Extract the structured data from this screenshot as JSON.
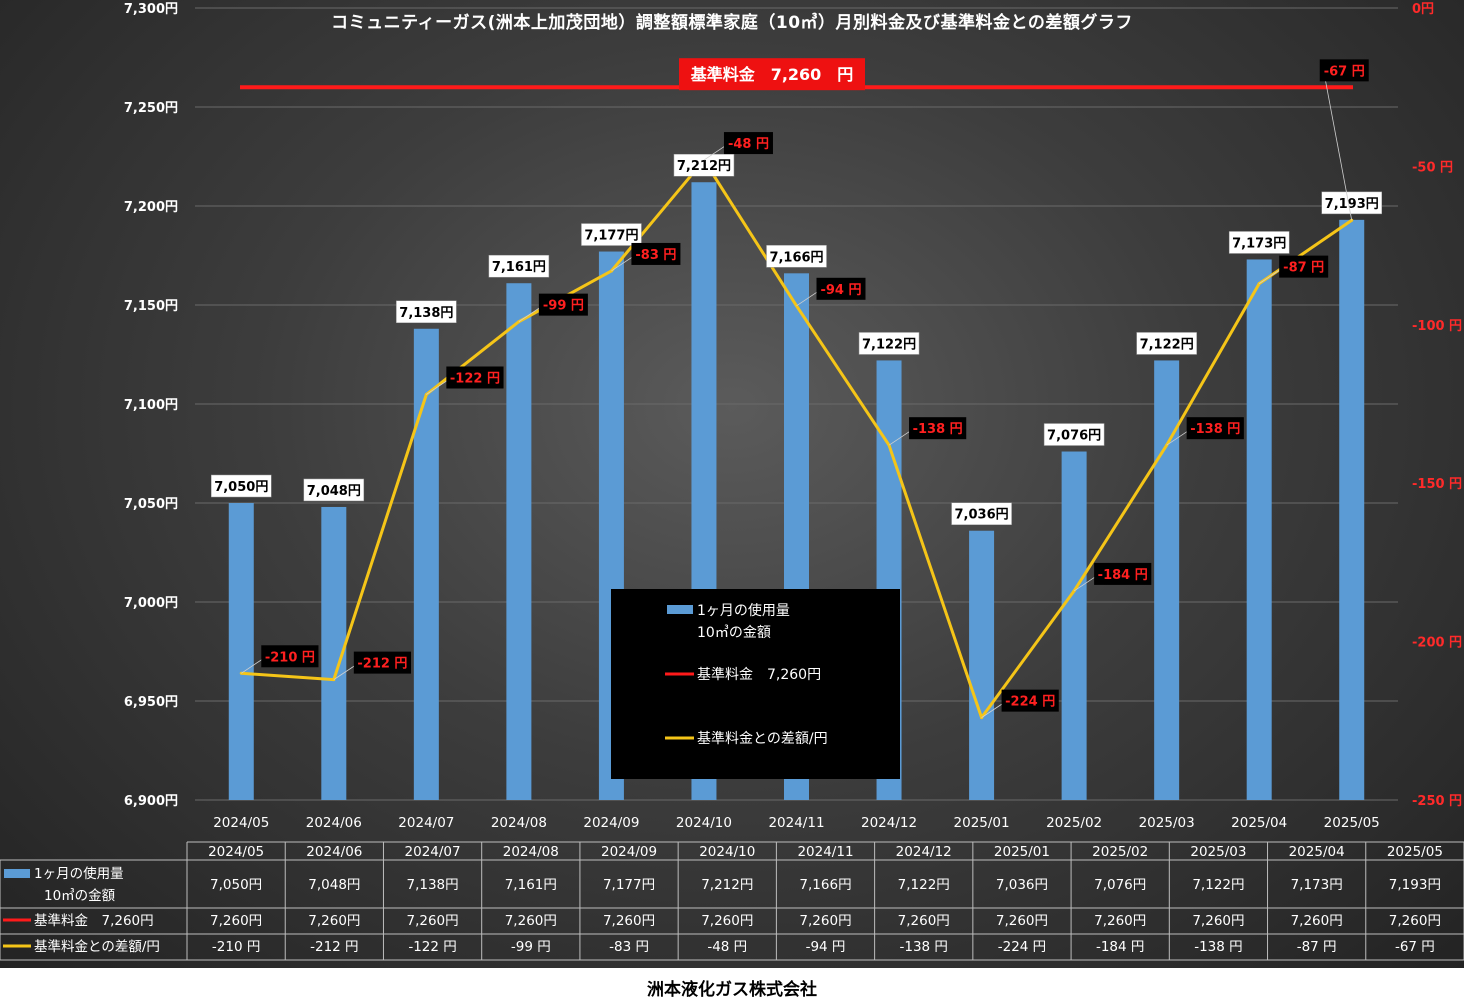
{
  "title": "コミュニティーガス(洲本上加茂団地）調整額標準家庭（10㎥）月別料金及び基準料金との差額グラフ",
  "footer": "洲本液化ガス株式会社",
  "colors": {
    "bar": "#5b9bd5",
    "base_line": "#ff1a1a",
    "diff_line": "#f5c518",
    "diff_text": "#ff2020"
  },
  "chart_data": {
    "type": "bar",
    "categories": [
      "2024/05",
      "2024/06",
      "2024/07",
      "2024/08",
      "2024/09",
      "2024/10",
      "2024/11",
      "2024/12",
      "2025/01",
      "2025/02",
      "2025/03",
      "2025/04",
      "2025/05"
    ],
    "y_left": {
      "ylim": [
        6900,
        7300
      ],
      "ticks": [
        "6,900円",
        "6,950円",
        "7,000円",
        "7,050円",
        "7,100円",
        "7,150円",
        "7,200円",
        "7,250円",
        "7,300円"
      ]
    },
    "y_right": {
      "ylim": [
        -250,
        0
      ],
      "ticks": [
        "-250 円",
        "-200 円",
        "-150 円",
        "-100 円",
        "-50 円",
        "0円"
      ]
    },
    "series": [
      {
        "name": "1ヶ月の使用量 10㎥の金額",
        "type": "bar",
        "axis": "left",
        "values": [
          7050,
          7048,
          7138,
          7161,
          7177,
          7212,
          7166,
          7122,
          7036,
          7076,
          7122,
          7173,
          7193
        ],
        "labels": [
          "7,050円",
          "7,048円",
          "7,138円",
          "7,161円",
          "7,177円",
          "7,212円",
          "7,166円",
          "7,122円",
          "7,036円",
          "7,076円",
          "7,122円",
          "7,173円",
          "7,193円"
        ]
      },
      {
        "name": "基準料金 7,260円",
        "type": "line",
        "axis": "left",
        "value": 7260,
        "label": "基準料金　7,260　円"
      },
      {
        "name": "基準料金との差額/円",
        "type": "line",
        "axis": "right",
        "values": [
          -210,
          -212,
          -122,
          -99,
          -83,
          -48,
          -94,
          -138,
          -224,
          -184,
          -138,
          -87,
          -67
        ],
        "labels": [
          "-210 円",
          "-212 円",
          "-122 円",
          "-99 円",
          "-83 円",
          "-48 円",
          "-94 円",
          "-138 円",
          "-224 円",
          "-184 円",
          "-138 円",
          "-87 円",
          "-67 円"
        ]
      }
    ],
    "legend": {
      "position": "center-bottom",
      "items": [
        {
          "line1": "1ヶ月の使用量",
          "line2": "10㎥の金額"
        },
        {
          "line1": "基準料金　7,260円"
        },
        {
          "line1": "基準料金との差額/円"
        }
      ]
    },
    "grid": true
  },
  "data_table": {
    "row_headers": [
      {
        "line1": "1ヶ月の使用量",
        "line2": "10㎥の金額"
      },
      {
        "line1": "基準料金　7,260円"
      },
      {
        "line1": "基準料金との差額/円"
      }
    ],
    "rows": [
      [
        "7,050円",
        "7,048円",
        "7,138円",
        "7,161円",
        "7,177円",
        "7,212円",
        "7,166円",
        "7,122円",
        "7,036円",
        "7,076円",
        "7,122円",
        "7,173円",
        "7,193円"
      ],
      [
        "7,260円",
        "7,260円",
        "7,260円",
        "7,260円",
        "7,260円",
        "7,260円",
        "7,260円",
        "7,260円",
        "7,260円",
        "7,260円",
        "7,260円",
        "7,260円",
        "7,260円"
      ],
      [
        "-210 円",
        "-212 円",
        "-122 円",
        "-99 円",
        "-83 円",
        "-48 円",
        "-94 円",
        "-138 円",
        "-224 円",
        "-184 円",
        "-138 円",
        "-87 円",
        "-67 円"
      ]
    ]
  }
}
